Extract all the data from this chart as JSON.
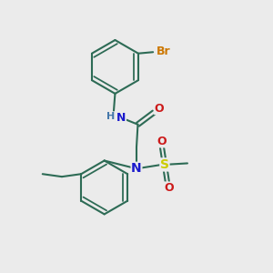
{
  "bg_color": "#ebebeb",
  "bond_color": "#2d6b55",
  "bond_width": 1.5,
  "atom_colors": {
    "N": "#1a1acc",
    "O": "#cc1a1a",
    "S": "#cccc00",
    "Br": "#cc7700",
    "H": "#4477aa",
    "C": "#2d6b55"
  },
  "font_size": 9,
  "fig_size": [
    3.0,
    3.0
  ],
  "dpi": 100
}
